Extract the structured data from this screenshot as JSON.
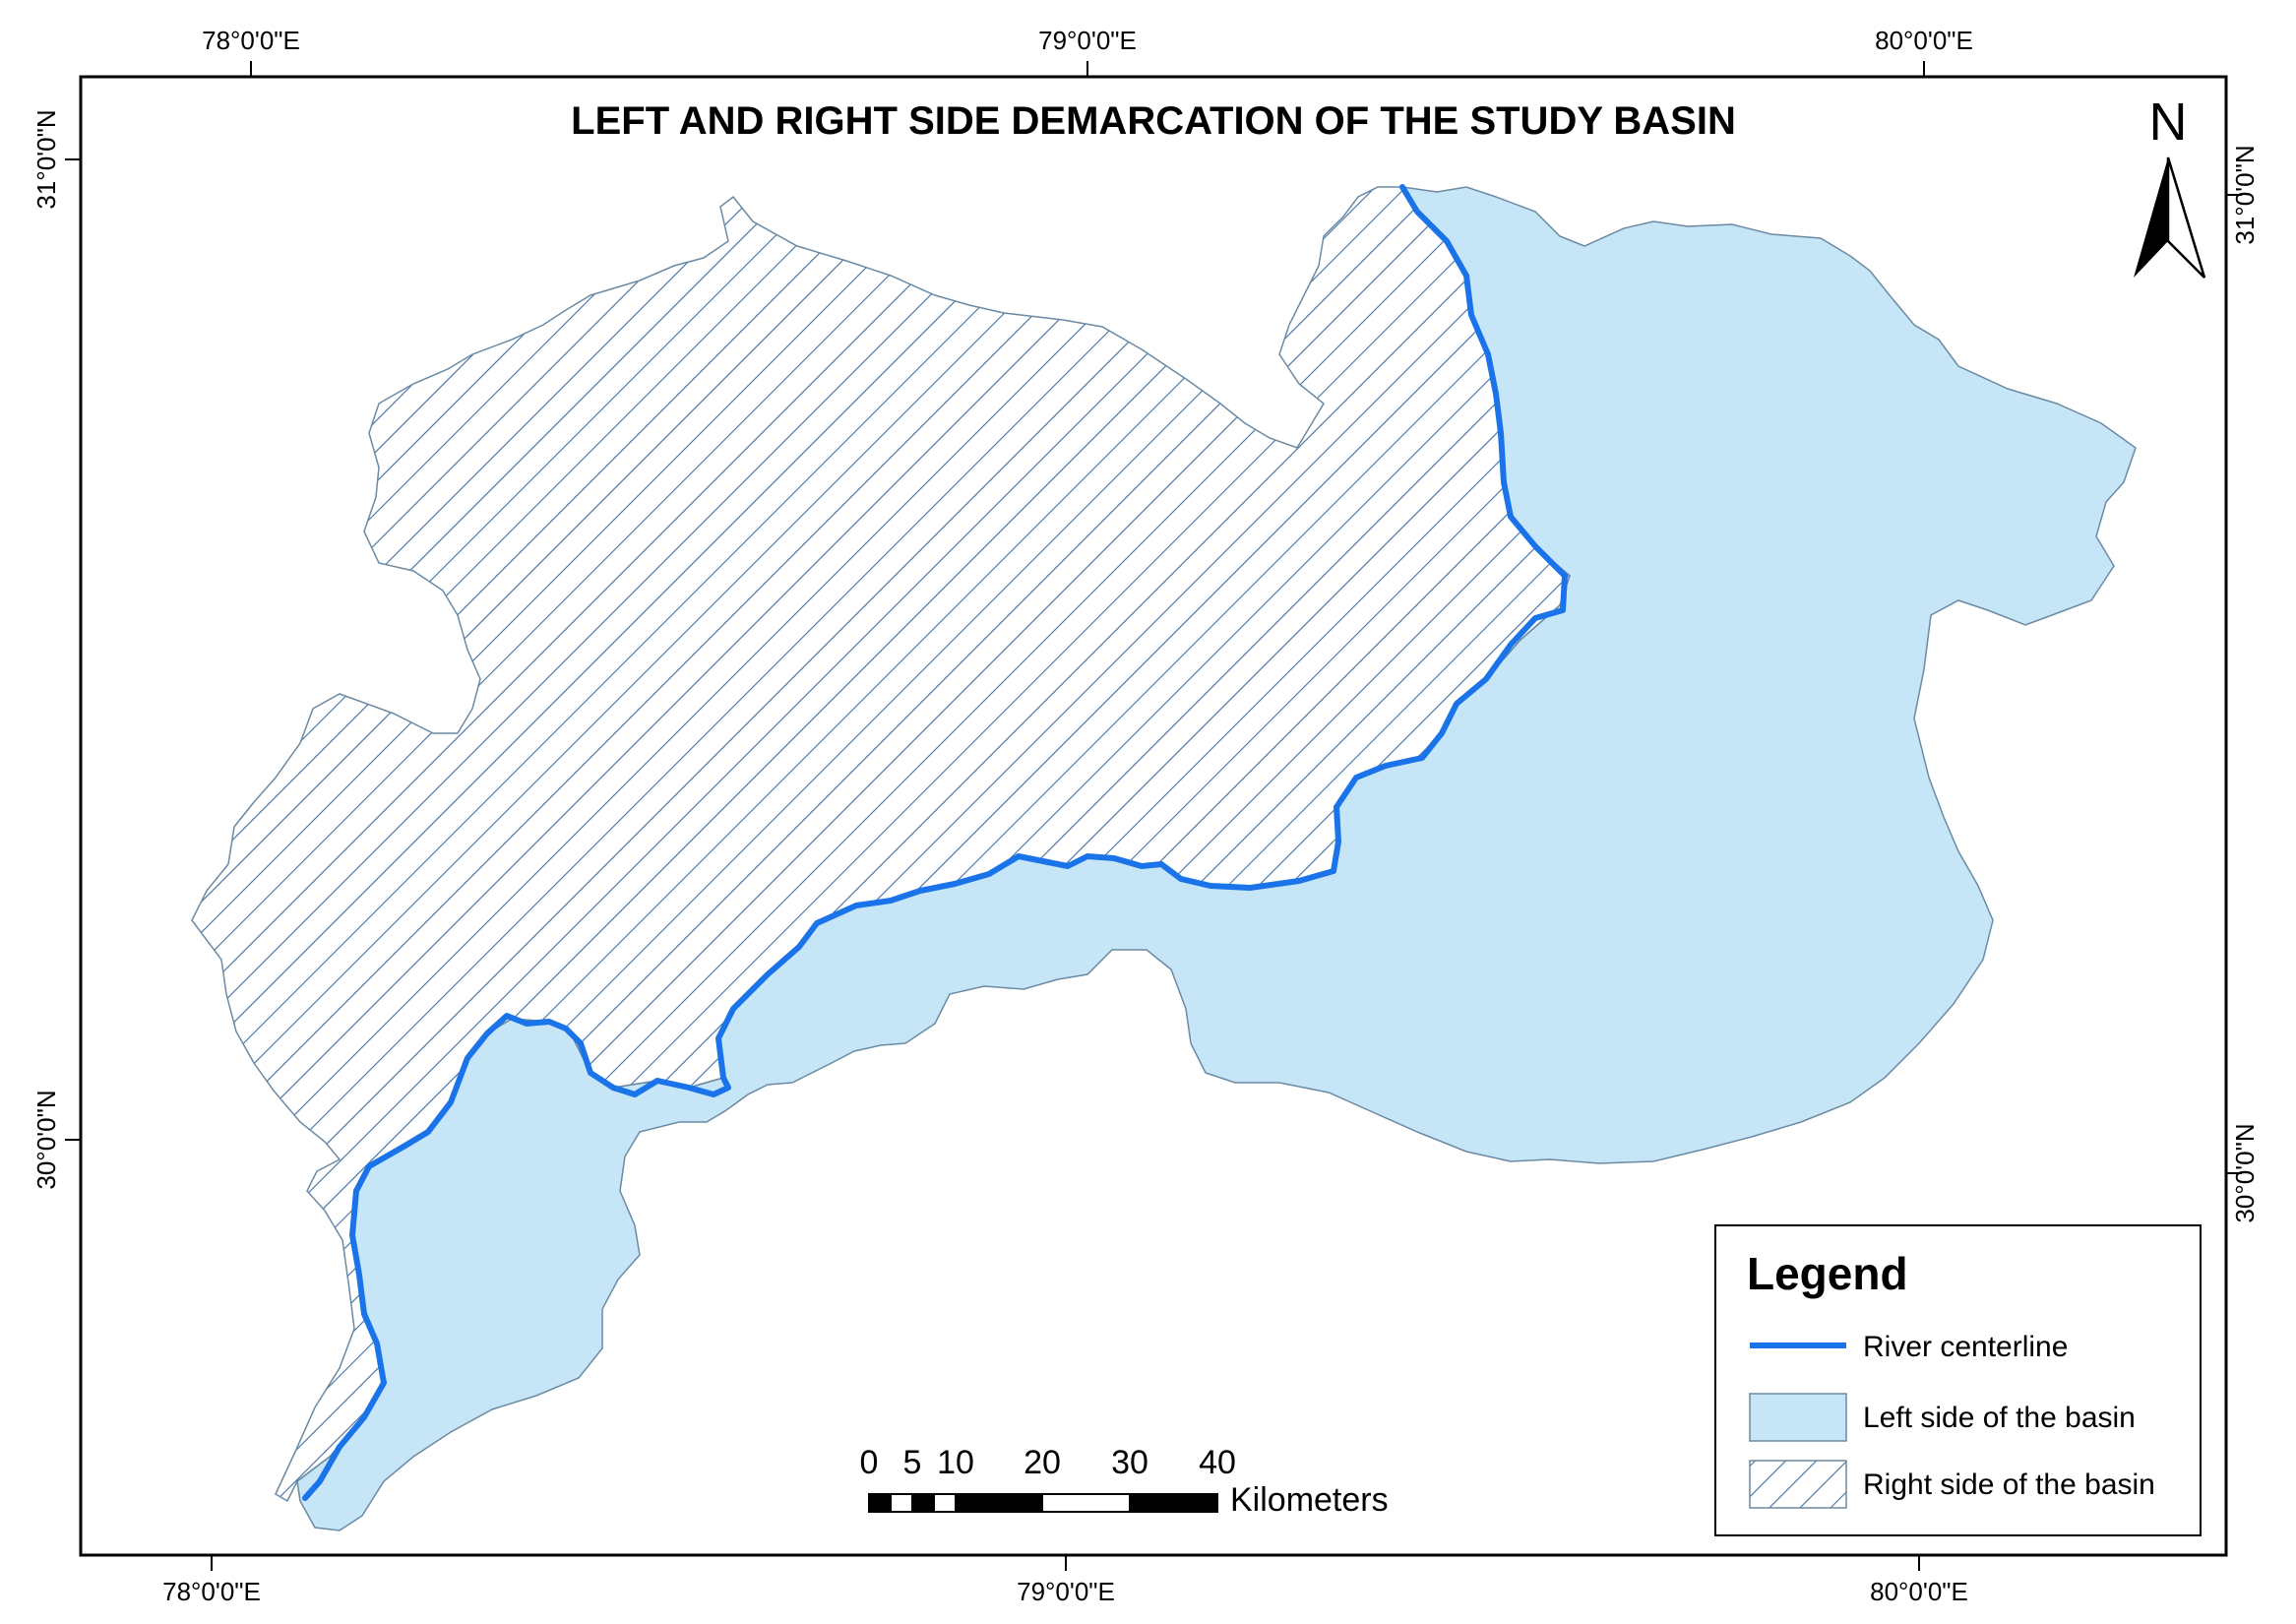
{
  "map": {
    "title": "LEFT AND RIGHT SIDE DEMARCATION OF THE STUDY BASIN",
    "top_ticks": [
      "78°0'0\"E",
      "79°0'0\"E",
      "80°0'0\"E"
    ],
    "bottom_ticks": [
      "78°0'0\"E",
      "79°0'0\"E",
      "80°0'0\"E"
    ],
    "left_ticks": [
      "31°0'0\"N",
      "30°0'0\"N"
    ],
    "right_ticks": [
      "31°0'0\"N",
      "30°0'0\"N"
    ],
    "north_arrow_label": "N",
    "scale_bar": {
      "values": [
        "0",
        "5",
        "10",
        "20",
        "30",
        "40"
      ],
      "unit": "Kilometers"
    },
    "legend": {
      "title": "Legend",
      "items": [
        {
          "label": "River centerline",
          "symbol": "line",
          "color": "#1a73e8"
        },
        {
          "label": "Left side of the basin",
          "symbol": "fill",
          "color": "#c6e6f8"
        },
        {
          "label": "Right side of the basin",
          "symbol": "hatch",
          "color": "#3f6e9e"
        }
      ]
    },
    "colors": {
      "river": "#1a73e8",
      "left_fill": "#c6e6f8",
      "hatch_line": "#3f6e9e",
      "outline": "#6b8aa3"
    }
  }
}
